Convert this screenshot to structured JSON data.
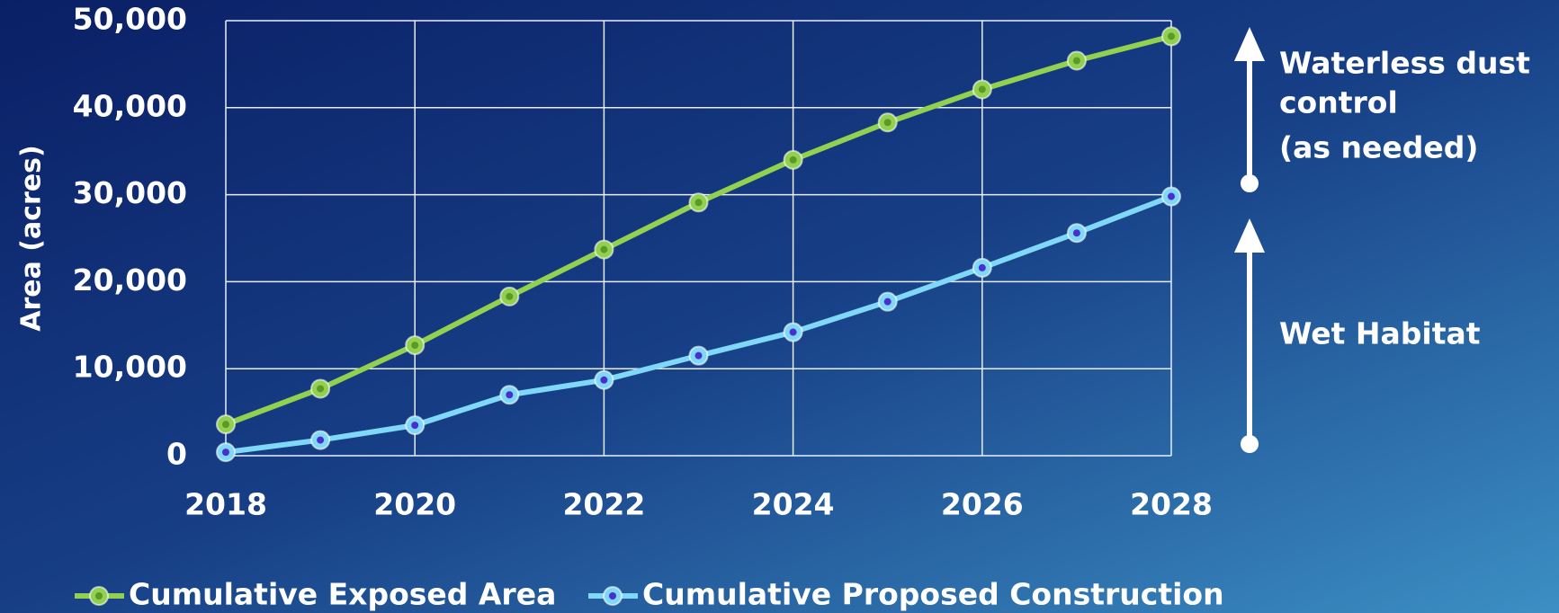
{
  "chart_data": {
    "type": "line",
    "y_label": "Area (acres)",
    "x": [
      2018,
      2019,
      2020,
      2021,
      2022,
      2023,
      2024,
      2025,
      2026,
      2027,
      2028
    ],
    "series": [
      {
        "name": "Cumulative Exposed Area",
        "color": "#92d050",
        "values": [
          3600,
          7700,
          12700,
          18300,
          23700,
          29100,
          34000,
          38300,
          42100,
          45400,
          48200
        ]
      },
      {
        "name": "Cumulative Proposed Construction",
        "color": "#7fd8f7",
        "values": [
          400,
          1800,
          3500,
          7000,
          8700,
          11500,
          14200,
          17700,
          21600,
          25600,
          29800
        ]
      }
    ],
    "xlim": [
      2018,
      2028
    ],
    "xticks": [
      2018,
      2020,
      2022,
      2024,
      2026,
      2028
    ],
    "ylim": [
      0,
      50000
    ],
    "yticks": [
      0,
      {
        "value": 10000,
        "label": "10,000"
      },
      {
        "value": 20000,
        "label": "20,000"
      },
      {
        "value": 30000,
        "label": "30,000"
      },
      {
        "value": 40000,
        "label": "40,000"
      },
      {
        "value": 50000,
        "label": "50,000"
      }
    ],
    "grid": true,
    "legend": "bottom",
    "annotations": [
      {
        "lines": [
          "Waterless dust",
          "control",
          "(as needed)"
        ]
      },
      {
        "lines": [
          "Wet Habitat"
        ]
      }
    ]
  }
}
